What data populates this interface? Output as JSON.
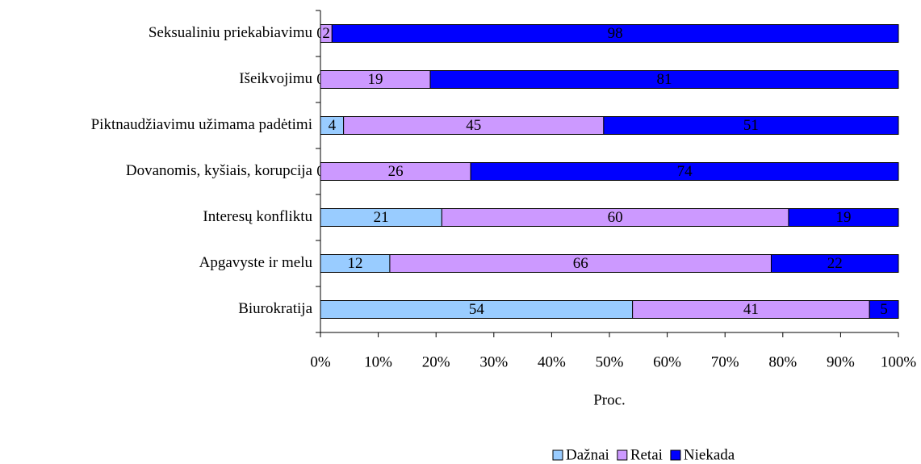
{
  "chart_data": {
    "type": "bar",
    "orientation": "horizontal",
    "stacked": true,
    "categories": [
      "Seksualiniu priekabiavimu",
      "Išeikvojimu",
      "Piktnaudžiavimu užimama padėtimi",
      "Dovanomis, kyšiais, korupcija",
      "Interesų konfliktu",
      "Apgavyste ir melu",
      "Biurokratija"
    ],
    "series": [
      {
        "name": "Dažnai",
        "color": "#99ccff",
        "values": [
          0,
          0,
          4,
          0,
          21,
          12,
          54
        ]
      },
      {
        "name": "Retai",
        "color": "#cc99ff",
        "values": [
          2,
          19,
          45,
          26,
          60,
          66,
          41
        ]
      },
      {
        "name": "Niekada",
        "color": "#0000ff",
        "values": [
          98,
          81,
          51,
          74,
          19,
          22,
          5
        ]
      }
    ],
    "xlabel": "Proc.",
    "xlim": [
      0,
      100
    ],
    "xticks": [
      {
        "value": 0,
        "label": "0%"
      },
      {
        "value": 10,
        "label": "10%"
      },
      {
        "value": 20,
        "label": "20%"
      },
      {
        "value": 30,
        "label": "30%"
      },
      {
        "value": 40,
        "label": "40%"
      },
      {
        "value": 50,
        "label": "50%"
      },
      {
        "value": 60,
        "label": "60%"
      },
      {
        "value": 70,
        "label": "70%"
      },
      {
        "value": 80,
        "label": "80%"
      },
      {
        "value": 90,
        "label": "90%"
      },
      {
        "value": 100,
        "label": "100%"
      }
    ],
    "legend": "bottom"
  }
}
